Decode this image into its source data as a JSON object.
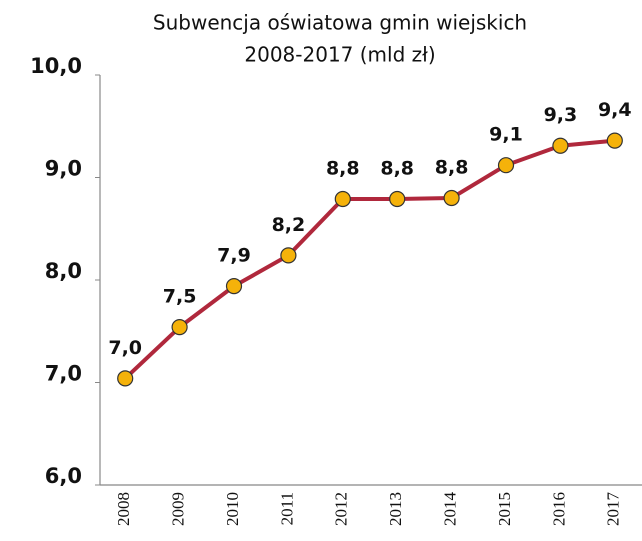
{
  "chart_data": {
    "type": "line",
    "title": "Subwencja oświatowa gmin wiejskich",
    "subtitle": "2008-2017  (mld zł)",
    "categories": [
      "2008",
      "2009",
      "2010",
      "2011",
      "2012",
      "2013",
      "2014",
      "2015",
      "2016",
      "2017"
    ],
    "series": [
      {
        "color": "#b0283c",
        "marker_color": "#f5b20a",
        "values": [
          7.04,
          7.54,
          7.94,
          8.24,
          8.79,
          8.79,
          8.8,
          9.12,
          9.31,
          9.36
        ],
        "value_labels": [
          "7,0",
          "7,5",
          "7,9",
          "8,2",
          "8,8",
          "8,8",
          "8,8",
          "9,1",
          "9,3",
          "9,4"
        ]
      }
    ],
    "ylim": [
      6,
      10
    ],
    "yticks": [
      {
        "value": 6,
        "label": "6,0"
      },
      {
        "value": 7,
        "label": "7,0"
      },
      {
        "value": 8,
        "label": "8,0"
      },
      {
        "value": 9,
        "label": "9,0"
      },
      {
        "value": 10,
        "label": "10,0"
      }
    ],
    "grid": false
  }
}
